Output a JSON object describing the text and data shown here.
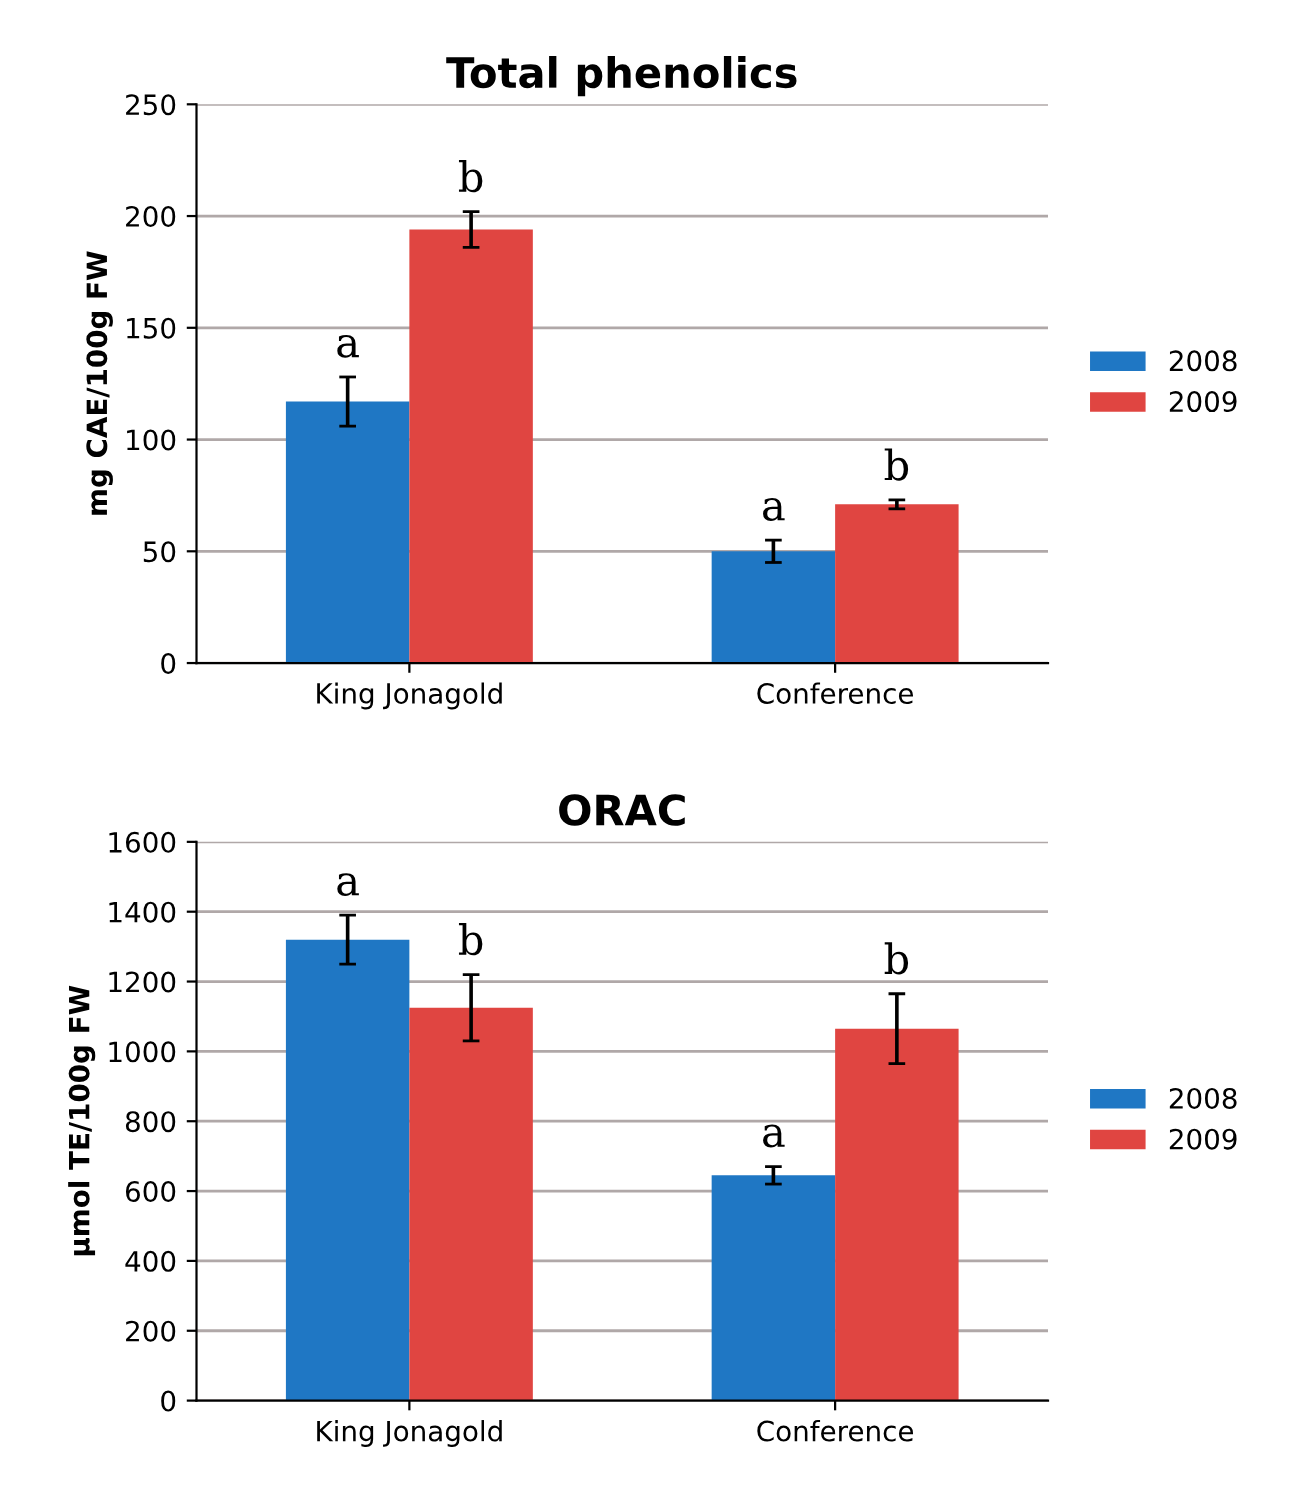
{
  "chart_data": [
    {
      "type": "bar",
      "title": "Total phenolics",
      "ylabel": "mg CAE/100g FW",
      "categories": [
        "King Jonagold",
        "Conference"
      ],
      "series": [
        {
          "name": "2008",
          "color": "#1f77c4",
          "values": [
            117,
            50
          ],
          "errors": [
            11,
            5
          ],
          "value_labels": [
            "a",
            "a"
          ]
        },
        {
          "name": "2009",
          "color": "#e04541",
          "values": [
            194,
            71
          ],
          "errors": [
            8,
            2
          ],
          "value_labels": [
            "b",
            "b"
          ]
        }
      ],
      "ylim": [
        0,
        250
      ],
      "yticks": [
        0,
        50,
        100,
        150,
        200,
        250
      ],
      "grid": "y",
      "legend": "right"
    },
    {
      "type": "bar",
      "title": "ORAC",
      "ylabel": "µmol TE/100g FW",
      "categories": [
        "King Jonagold",
        "Conference"
      ],
      "series": [
        {
          "name": "2008",
          "color": "#1f77c4",
          "values": [
            1320,
            645
          ],
          "errors": [
            70,
            25
          ],
          "value_labels": [
            "a",
            "a"
          ]
        },
        {
          "name": "2009",
          "color": "#e04541",
          "values": [
            1125,
            1065
          ],
          "errors": [
            95,
            100
          ],
          "value_labels": [
            "b",
            "b"
          ]
        }
      ],
      "ylim": [
        0,
        1600
      ],
      "yticks": [
        0,
        200,
        400,
        600,
        800,
        1000,
        1200,
        1400,
        1600
      ],
      "grid": "y",
      "legend": "right"
    }
  ]
}
